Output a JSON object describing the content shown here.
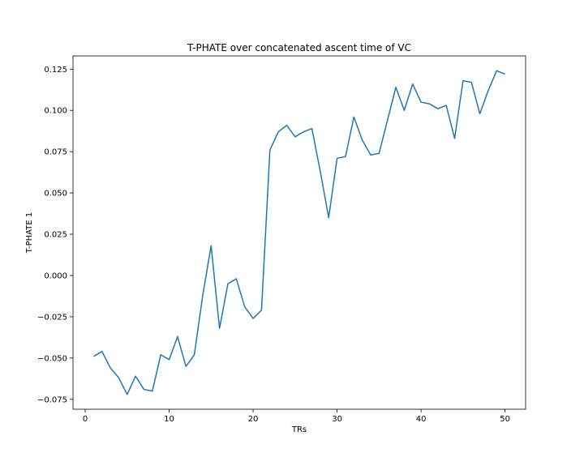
{
  "chart_data": {
    "type": "line",
    "title": "T-PHATE over concatenated ascent time of VC",
    "xlabel": "TRs",
    "ylabel": "T-PHATE 1",
    "xlim": [
      -1.45,
      52.45
    ],
    "ylim": [
      -0.081,
      0.133
    ],
    "xticks": [
      0,
      10,
      20,
      30,
      40,
      50
    ],
    "xtick_labels": [
      "0",
      "10",
      "20",
      "30",
      "40",
      "50"
    ],
    "yticks": [
      -0.075,
      -0.05,
      -0.025,
      0.0,
      0.025,
      0.05,
      0.075,
      0.1,
      0.125
    ],
    "ytick_labels": [
      "−0.075",
      "−0.050",
      "−0.025",
      "0.000",
      "0.025",
      "0.050",
      "0.075",
      "0.100",
      "0.125"
    ],
    "grid": false,
    "series": [
      {
        "color": "#1f77b4",
        "x": [
          1,
          2,
          3,
          4,
          5,
          6,
          7,
          8,
          9,
          10,
          11,
          12,
          13,
          14,
          15,
          16,
          17,
          18,
          19,
          20,
          21,
          22,
          23,
          24,
          25,
          26,
          27,
          28,
          29,
          30,
          31,
          32,
          33,
          34,
          35,
          36,
          37,
          38,
          39,
          40,
          41,
          42,
          43,
          44,
          45,
          46,
          47,
          48,
          49,
          50
        ],
        "y": [
          -0.049,
          -0.046,
          -0.056,
          -0.062,
          -0.072,
          -0.061,
          -0.069,
          -0.07,
          -0.048,
          -0.051,
          -0.037,
          -0.055,
          -0.048,
          -0.012,
          0.018,
          -0.032,
          -0.005,
          -0.002,
          -0.019,
          -0.026,
          -0.021,
          0.076,
          0.087,
          0.091,
          0.084,
          0.087,
          0.089,
          0.063,
          0.035,
          0.071,
          0.072,
          0.096,
          0.082,
          0.073,
          0.074,
          0.094,
          0.114,
          0.1,
          0.116,
          0.105,
          0.104,
          0.101,
          0.103,
          0.083,
          0.118,
          0.117,
          0.098,
          0.112,
          0.124,
          0.122
        ]
      }
    ]
  }
}
